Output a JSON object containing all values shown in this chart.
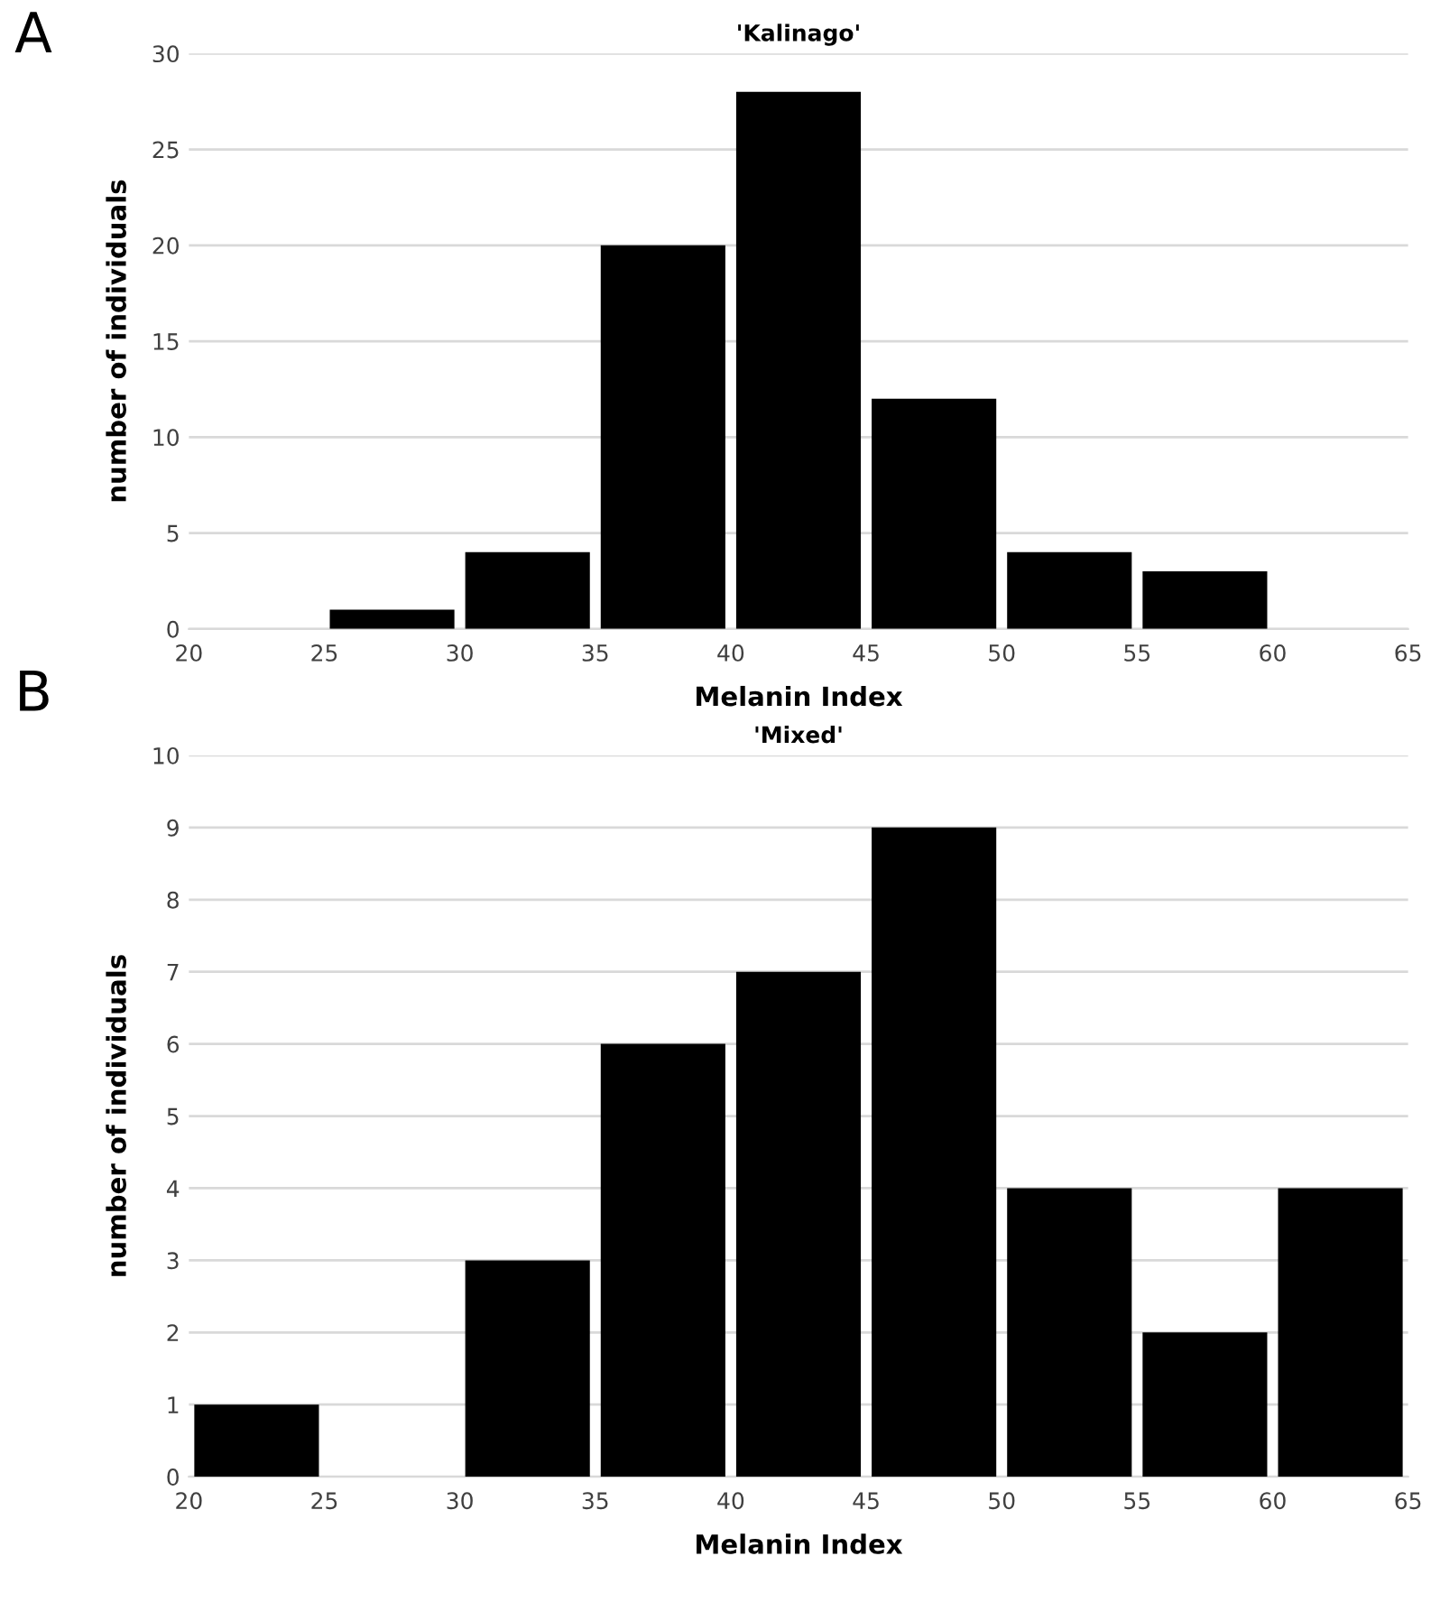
{
  "chart_data": [
    {
      "type": "histogram",
      "title": "'Kalinago'",
      "xlabel": "Melanin Index",
      "ylabel": "number of individuals",
      "annotations": [
        "A"
      ],
      "bins": [
        20,
        25,
        30,
        35,
        40,
        45,
        50,
        55,
        60,
        65
      ],
      "values": [
        0,
        1,
        4,
        20,
        28,
        12,
        4,
        3,
        0
      ],
      "color": "#000000",
      "xlim": [
        20,
        65
      ],
      "xticks": [
        20,
        25,
        30,
        35,
        40,
        45,
        50,
        55,
        60,
        65
      ],
      "ylim": [
        0,
        30
      ],
      "yticks": [
        0,
        5,
        10,
        15,
        20,
        25,
        30
      ],
      "grid": "y"
    },
    {
      "type": "histogram",
      "title": "'Mixed'",
      "xlabel": "Melanin Index",
      "ylabel": "number of individuals",
      "annotations": [
        "B"
      ],
      "bins": [
        20,
        25,
        30,
        35,
        40,
        45,
        50,
        55,
        60,
        65
      ],
      "values": [
        1,
        0,
        3,
        6,
        7,
        9,
        4,
        2,
        4
      ],
      "color": "#000000",
      "xlim": [
        20,
        65
      ],
      "xticks": [
        20,
        25,
        30,
        35,
        40,
        45,
        50,
        55,
        60,
        65
      ],
      "ylim": [
        0,
        10
      ],
      "yticks": [
        0,
        1,
        2,
        3,
        4,
        5,
        6,
        7,
        8,
        9,
        10
      ],
      "grid": "y"
    }
  ]
}
